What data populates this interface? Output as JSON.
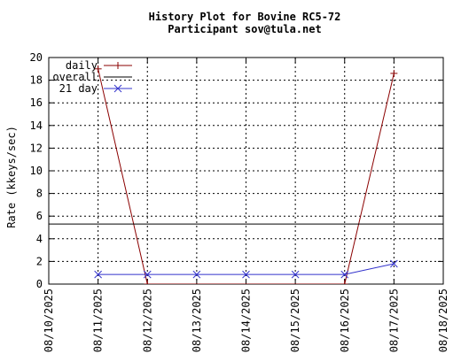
{
  "chart_data": {
    "type": "line",
    "title": "History Plot for Bovine RC5-72",
    "subtitle": "Participant sov@tula.net",
    "xlabel": "",
    "ylabel": "Rate (kkeys/sec)",
    "x_ticks": [
      "08/10/2025",
      "08/11/2025",
      "08/12/2025",
      "08/13/2025",
      "08/14/2025",
      "08/15/2025",
      "08/16/2025",
      "08/17/2025",
      "08/18/2025"
    ],
    "xlim": [
      "08/10/2025",
      "08/18/2025"
    ],
    "ylim": [
      0,
      20
    ],
    "y_ticks": [
      0,
      2,
      4,
      6,
      8,
      10,
      12,
      14,
      16,
      18,
      20
    ],
    "grid": true,
    "legend_position": "top-left",
    "series": [
      {
        "name": "daily",
        "color": "#8b0000",
        "marker": "plus",
        "points": [
          {
            "x": "08/11/2025",
            "y": 19.0
          },
          {
            "x": "08/12/2025",
            "y": 0.0
          },
          {
            "x": "08/16/2025",
            "y": 0.0
          },
          {
            "x": "08/17/2025",
            "y": 18.6
          }
        ]
      },
      {
        "name": "overall",
        "color": "#000000",
        "marker": "none",
        "constant": 5.3
      },
      {
        "name": "21 day",
        "color": "#3333cc",
        "marker": "x",
        "points": [
          {
            "x": "08/11/2025",
            "y": 0.85
          },
          {
            "x": "08/12/2025",
            "y": 0.85
          },
          {
            "x": "08/13/2025",
            "y": 0.85
          },
          {
            "x": "08/14/2025",
            "y": 0.85
          },
          {
            "x": "08/15/2025",
            "y": 0.85
          },
          {
            "x": "08/16/2025",
            "y": 0.85
          },
          {
            "x": "08/17/2025",
            "y": 1.8
          }
        ]
      }
    ]
  }
}
